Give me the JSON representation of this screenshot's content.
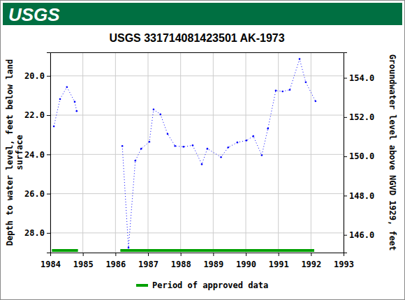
{
  "chart_data": {
    "type": "line",
    "logo_text": "USGS",
    "title": "USGS 331714081423501 AK-1973",
    "y_label": [
      "Depth to water level, feet below land",
      "surface"
    ],
    "y2_label": "Groundwater level above NGVD 1929, feet",
    "x": [
      1984.11,
      1984.3,
      1984.51,
      1984.75,
      1984.81,
      null,
      1986.21,
      1986.4,
      1986.61,
      1986.79,
      1987.04,
      1987.17,
      1987.38,
      1987.6,
      1987.83,
      1988.09,
      1988.37,
      1988.65,
      1988.82,
      1989.24,
      1989.46,
      1989.74,
      1990.02,
      1990.23,
      1990.49,
      1990.68,
      1990.92,
      1991.13,
      1991.35,
      1991.65,
      1991.84,
      1992.14
    ],
    "values": [
      22.57,
      21.18,
      20.57,
      21.32,
      21.79,
      null,
      23.57,
      28.75,
      24.32,
      23.71,
      23.36,
      21.71,
      21.96,
      22.96,
      23.57,
      23.61,
      23.54,
      24.5,
      23.71,
      24.14,
      23.64,
      23.39,
      23.29,
      23.07,
      24.04,
      22.68,
      20.75,
      20.79,
      20.71,
      19.14,
      20.32,
      21.29
    ],
    "color": "#0000ff",
    "marker": "circle",
    "line_style": "dotted",
    "xlim": [
      1984,
      1993
    ],
    "xticks": [
      1984,
      1985,
      1986,
      1987,
      1988,
      1989,
      1990,
      1991,
      1992,
      1993
    ],
    "ylim": [
      18.8,
      29.0
    ],
    "yticks": [
      {
        "value": 20,
        "label": "20.0"
      },
      {
        "value": 22,
        "label": "22.0"
      },
      {
        "value": 24,
        "label": "24.0"
      },
      {
        "value": 26,
        "label": "26.0"
      },
      {
        "value": 28,
        "label": "28.0"
      }
    ],
    "y2lim": [
      155.3,
      145.1
    ],
    "y2ticks": [
      {
        "value": 146,
        "label": "146.0"
      },
      {
        "value": 148,
        "label": "148.0"
      },
      {
        "value": 150,
        "label": "150.0"
      },
      {
        "value": 152,
        "label": "152.0"
      },
      {
        "value": 154,
        "label": "154.0"
      }
    ],
    "grid": true,
    "approved_periods": {
      "name": "Period of approved data",
      "color": "#00a000",
      "ranges": [
        [
          1984.05,
          1984.85
        ],
        [
          1986.15,
          1992.1
        ]
      ]
    },
    "legend": "bottom"
  }
}
